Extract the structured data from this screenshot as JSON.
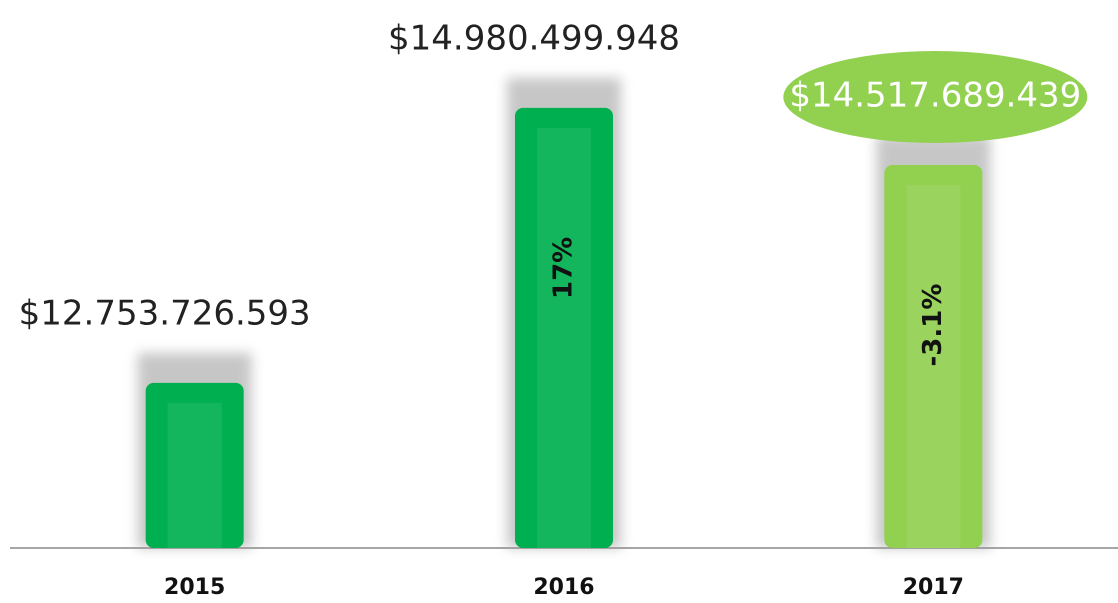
{
  "chart_data": {
    "type": "bar",
    "categories": [
      "2015",
      "2016",
      "2017"
    ],
    "values": [
      12753726593,
      14980499948,
      14517689439
    ],
    "value_labels": [
      "$12.753.726.593",
      "$14.980.499.948",
      "$14.517.689.439"
    ],
    "changes": [
      null,
      17,
      -3.1
    ],
    "change_labels": [
      null,
      "17%",
      "-3.1%"
    ],
    "colors": [
      "#00b050",
      "#00b050",
      "#92d050"
    ],
    "ylim": [
      11417000000,
      15530000000
    ]
  }
}
